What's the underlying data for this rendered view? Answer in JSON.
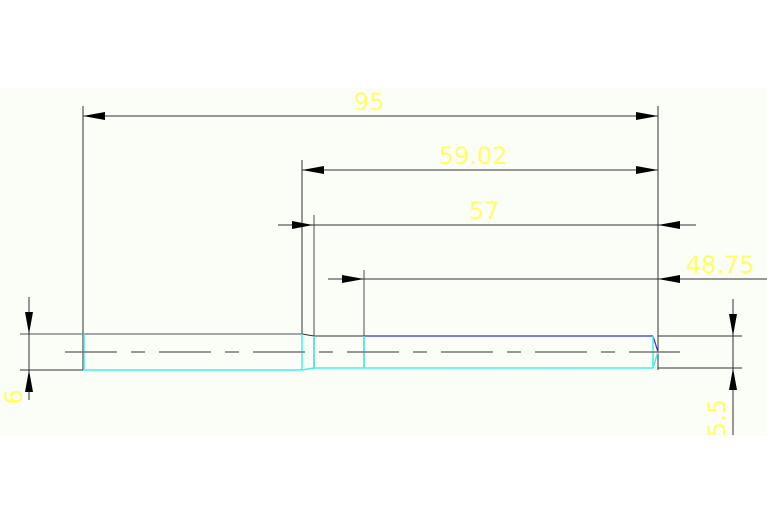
{
  "drawing": {
    "dimensions": {
      "overall_length": "95",
      "length_59": "59.02",
      "length_57": "57",
      "length_48": "48.75",
      "diameter_left": "6",
      "diameter_right": "5.5"
    },
    "colors": {
      "dimension_text": "#ffff66",
      "part_outline": "#44eeee",
      "background_band": "#fbfdf7"
    }
  }
}
